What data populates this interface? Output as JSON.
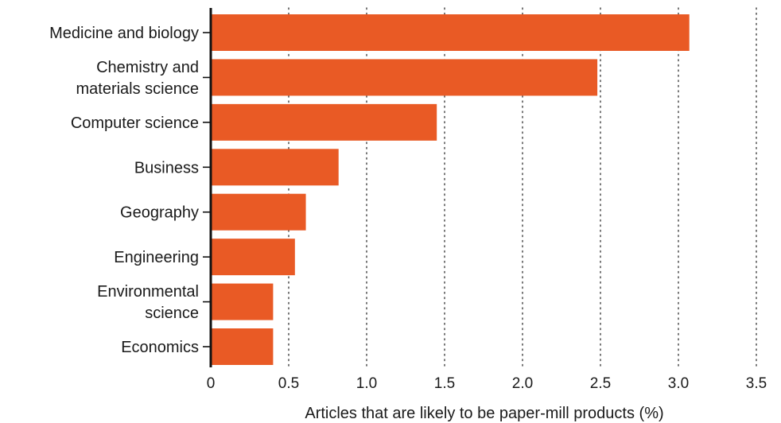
{
  "chart_data": {
    "type": "bar",
    "orientation": "horizontal",
    "categories": [
      [
        "Medicine and biology"
      ],
      [
        "Chemistry and",
        "materials science"
      ],
      [
        "Computer science"
      ],
      [
        "Business"
      ],
      [
        "Geography"
      ],
      [
        "Engineering"
      ],
      [
        "Environmental",
        "science"
      ],
      [
        "Economics"
      ]
    ],
    "values": [
      3.07,
      2.48,
      1.45,
      0.82,
      0.61,
      0.54,
      0.4,
      0.4
    ],
    "xlabel": "Articles that are likely to be paper-mill products (%)",
    "ylabel": "",
    "title": "",
    "xlim": [
      0,
      3.5
    ],
    "xticks": [
      0,
      0.5,
      1.0,
      1.5,
      2.0,
      2.5,
      3.0,
      3.5
    ],
    "xtick_labels": [
      "0",
      "0.5",
      "1.0",
      "1.5",
      "2.0",
      "2.5",
      "3.0",
      "3.5"
    ],
    "grid": "vertical dotted",
    "legend": "none",
    "colors": {
      "bar": "#e95a25",
      "axis": "#111111",
      "grid": "#555555",
      "text": "#1a1a1a"
    }
  }
}
